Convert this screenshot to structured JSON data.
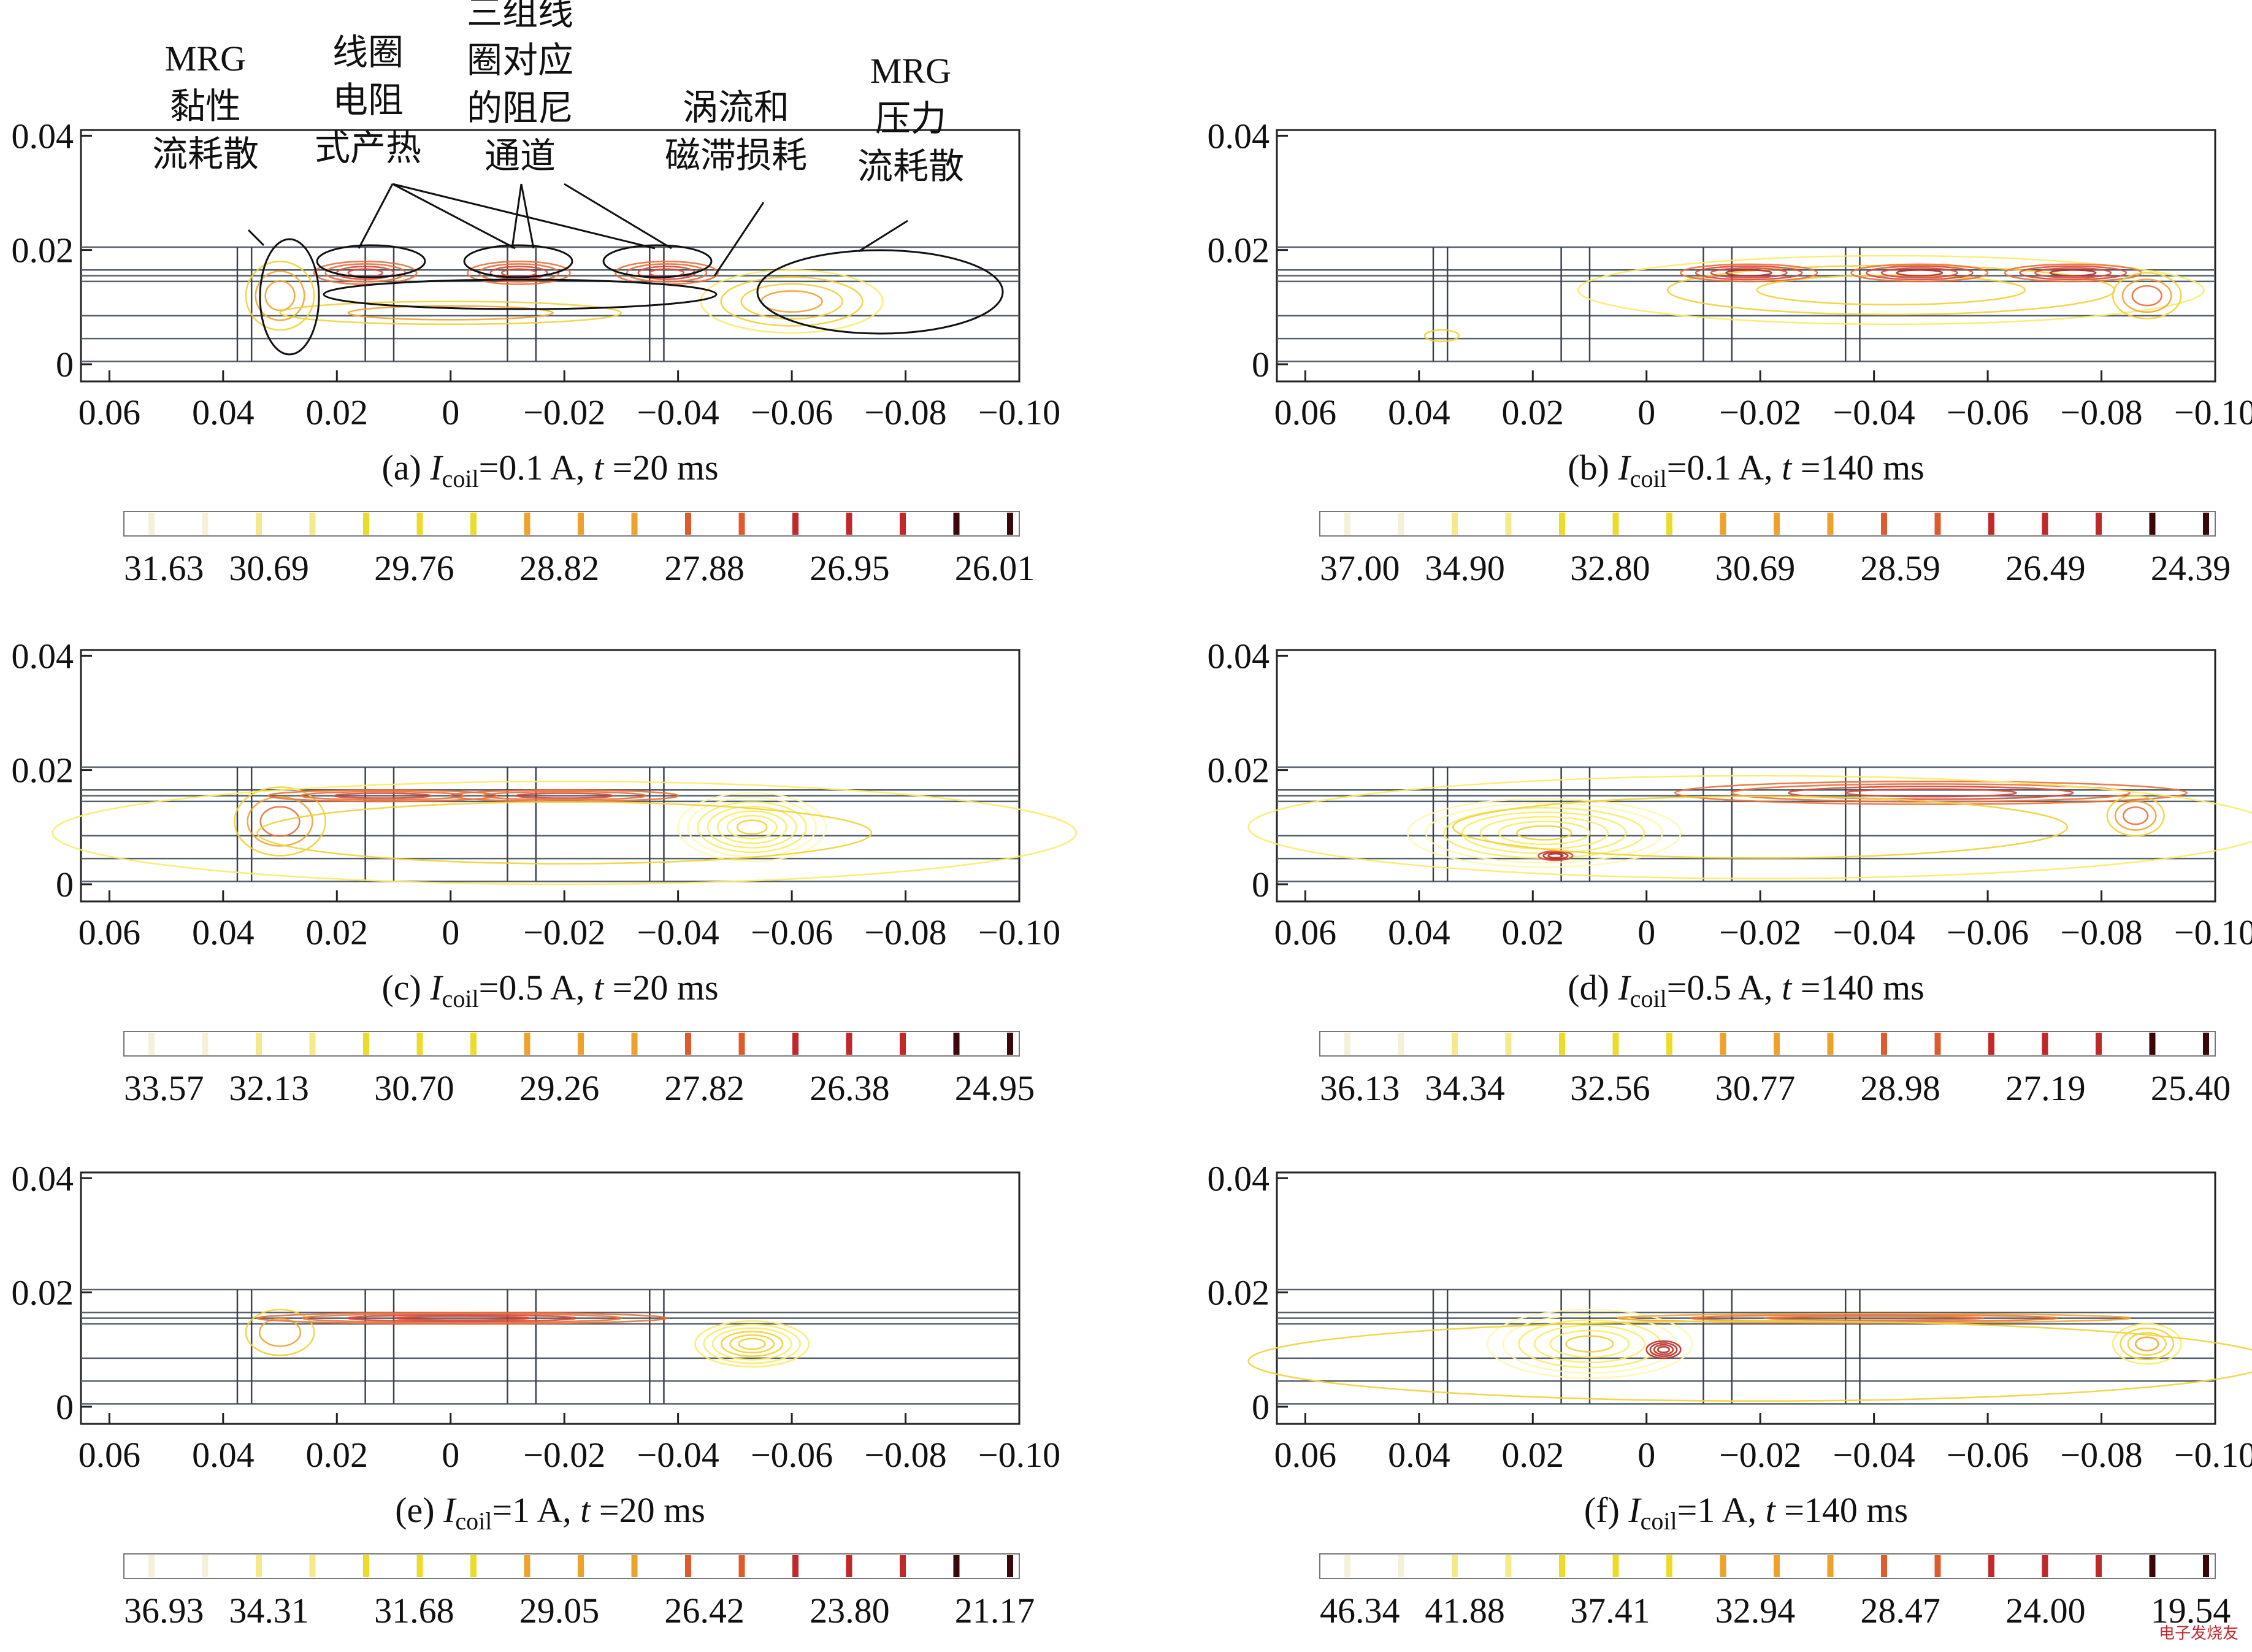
{
  "chart_data": [
    {
      "id": "a",
      "type": "contour",
      "caption": {
        "prefix": "(a)",
        "var": "I",
        "sub": "coil",
        "current": "0.1 A",
        "time": "20 ms"
      },
      "x_ticks": [
        "0.06",
        "0.04",
        "0.02",
        "0",
        "−0.02",
        "−0.04",
        "−0.06",
        "−0.08",
        "−0.10"
      ],
      "x_values": [
        0.06,
        0.04,
        0.02,
        0,
        -0.02,
        -0.04,
        -0.06,
        -0.08,
        -0.1
      ],
      "y_ticks": [
        "0",
        "0.02",
        "0.04"
      ],
      "y_values": [
        0,
        0.02,
        0.04
      ],
      "colorbar": [
        "31.63",
        "30.69",
        "29.76",
        "28.82",
        "27.88",
        "26.95",
        "26.01"
      ],
      "channel_lines": [
        0.0005,
        0.0045,
        0.0085,
        0.0145,
        0.0155,
        0.0165,
        0.0205
      ],
      "pole_pairs": [
        [
          0.0375,
          0.035
        ],
        [
          0.015,
          0.01
        ],
        [
          -0.01,
          -0.015
        ],
        [
          -0.035,
          -0.0375
        ]
      ],
      "contours": [
        {
          "cx": 0.03,
          "cy": 0.012,
          "rx": 0.006,
          "ry": 0.006,
          "n": 3,
          "warm": 0.35
        },
        {
          "cx": 0.015,
          "cy": 0.016,
          "rx": 0.009,
          "ry": 0.002,
          "n": 4,
          "warm": 0.6
        },
        {
          "cx": -0.012,
          "cy": 0.016,
          "rx": 0.009,
          "ry": 0.002,
          "n": 4,
          "warm": 0.6
        },
        {
          "cx": -0.038,
          "cy": 0.016,
          "rx": 0.009,
          "ry": 0.002,
          "n": 4,
          "warm": 0.6
        },
        {
          "cx": -0.06,
          "cy": 0.011,
          "rx": 0.016,
          "ry": 0.0055,
          "n": 4,
          "warm": 0.2
        },
        {
          "cx": 0.0,
          "cy": 0.009,
          "rx": 0.03,
          "ry": 0.002,
          "n": 2,
          "warm": 0.3
        }
      ],
      "annotations": [
        {
          "lines": [
            "MRG",
            "黏性",
            "流耗散"
          ]
        },
        {
          "lines": [
            "线圈",
            "电阻",
            "式产热"
          ]
        },
        {
          "lines": [
            "三组线",
            "圈对应",
            "的阻尼",
            "通道"
          ]
        },
        {
          "lines": [
            "涡流和",
            "磁滞损耗"
          ]
        },
        {
          "lines": [
            "MRG",
            "压力",
            "流耗散"
          ]
        }
      ]
    },
    {
      "id": "b",
      "type": "contour",
      "caption": {
        "prefix": "(b)",
        "var": "I",
        "sub": "coil",
        "current": "0.1 A",
        "time": "140 ms"
      },
      "x_ticks": [
        "0.06",
        "0.04",
        "0.02",
        "0",
        "−0.02",
        "−0.04",
        "−0.06",
        "−0.08",
        "−0.10"
      ],
      "x_values": [
        0.06,
        0.04,
        0.02,
        0,
        -0.02,
        -0.04,
        -0.06,
        -0.08,
        -0.1
      ],
      "y_ticks": [
        "0",
        "0.02",
        "0.04"
      ],
      "y_values": [
        0,
        0.02,
        0.04
      ],
      "colorbar": [
        "37.00",
        "34.90",
        "32.80",
        "30.69",
        "28.59",
        "26.49",
        "24.39"
      ],
      "channel_lines": [
        0.0005,
        0.0045,
        0.0085,
        0.0145,
        0.0155,
        0.0165,
        0.0205
      ],
      "pole_pairs": [
        [
          0.0375,
          0.035
        ],
        [
          0.015,
          0.01
        ],
        [
          -0.01,
          -0.015
        ],
        [
          -0.035,
          -0.0375
        ]
      ],
      "contours": [
        {
          "cx": 0.036,
          "cy": 0.005,
          "rx": 0.003,
          "ry": 0.001,
          "n": 1,
          "warm": 0.4
        },
        {
          "cx": -0.043,
          "cy": 0.013,
          "rx": 0.055,
          "ry": 0.006,
          "n": 3,
          "warm": 0.2
        },
        {
          "cx": -0.018,
          "cy": 0.016,
          "rx": 0.012,
          "ry": 0.0015,
          "n": 4,
          "warm": 0.7
        },
        {
          "cx": -0.048,
          "cy": 0.016,
          "rx": 0.012,
          "ry": 0.0015,
          "n": 4,
          "warm": 0.7
        },
        {
          "cx": -0.075,
          "cy": 0.016,
          "rx": 0.012,
          "ry": 0.0015,
          "n": 4,
          "warm": 0.7
        },
        {
          "cx": -0.088,
          "cy": 0.012,
          "rx": 0.006,
          "ry": 0.004,
          "n": 3,
          "warm": 0.4
        }
      ]
    },
    {
      "id": "c",
      "type": "contour",
      "caption": {
        "prefix": "(c)",
        "var": "I",
        "sub": "coil",
        "current": "0.5 A",
        "time": "20 ms"
      },
      "x_ticks": [
        "0.06",
        "0.04",
        "0.02",
        "0",
        "−0.02",
        "−0.04",
        "−0.06",
        "−0.08",
        "−0.10"
      ],
      "x_values": [
        0.06,
        0.04,
        0.02,
        0,
        -0.02,
        -0.04,
        -0.06,
        -0.08,
        -0.1
      ],
      "y_ticks": [
        "0",
        "0.02",
        "0.04"
      ],
      "y_values": [
        0,
        0.02,
        0.04
      ],
      "colorbar": [
        "33.57",
        "32.13",
        "30.70",
        "29.26",
        "27.82",
        "26.38",
        "24.95"
      ],
      "channel_lines": [
        0.0005,
        0.0045,
        0.0085,
        0.0145,
        0.0155,
        0.0165,
        0.0205
      ],
      "pole_pairs": [
        [
          0.0375,
          0.035
        ],
        [
          0.015,
          0.01
        ],
        [
          -0.01,
          -0.015
        ],
        [
          -0.035,
          -0.0375
        ]
      ],
      "contours": [
        {
          "cx": 0.03,
          "cy": 0.011,
          "rx": 0.008,
          "ry": 0.006,
          "n": 3,
          "warm": 0.4
        },
        {
          "cx": 0.012,
          "cy": 0.0155,
          "rx": 0.02,
          "ry": 0.001,
          "n": 3,
          "warm": 0.6
        },
        {
          "cx": -0.02,
          "cy": 0.0155,
          "rx": 0.02,
          "ry": 0.001,
          "n": 3,
          "warm": 0.6
        },
        {
          "cx": -0.053,
          "cy": 0.01,
          "rx": 0.013,
          "ry": 0.006,
          "n": 7,
          "warm": 0.0
        },
        {
          "cx": -0.02,
          "cy": 0.009,
          "rx": 0.09,
          "ry": 0.009,
          "n": 2,
          "warm": 0.2
        }
      ]
    },
    {
      "id": "d",
      "type": "contour",
      "caption": {
        "prefix": "(d)",
        "var": "I",
        "sub": "coil",
        "current": "0.5 A",
        "time": "140 ms"
      },
      "x_ticks": [
        "0.06",
        "0.04",
        "0.02",
        "0",
        "−0.02",
        "−0.04",
        "−0.06",
        "−0.08",
        "−0.10"
      ],
      "x_values": [
        0.06,
        0.04,
        0.02,
        0,
        -0.02,
        -0.04,
        -0.06,
        -0.08,
        -0.1
      ],
      "y_ticks": [
        "0",
        "0.02",
        "0.04"
      ],
      "y_values": [
        0,
        0.02,
        0.04
      ],
      "colorbar": [
        "36.13",
        "34.34",
        "32.56",
        "30.77",
        "28.98",
        "27.19",
        "25.40"
      ],
      "channel_lines": [
        0.0005,
        0.0045,
        0.0085,
        0.0145,
        0.0155,
        0.0165,
        0.0205
      ],
      "pole_pairs": [
        [
          0.0375,
          0.035
        ],
        [
          0.015,
          0.01
        ],
        [
          -0.01,
          -0.015
        ],
        [
          -0.035,
          -0.0375
        ]
      ],
      "contours": [
        {
          "cx": 0.018,
          "cy": 0.009,
          "rx": 0.024,
          "ry": 0.006,
          "n": 7,
          "warm": 0.0
        },
        {
          "cx": 0.016,
          "cy": 0.005,
          "rx": 0.003,
          "ry": 0.0008,
          "n": 3,
          "warm": 0.9
        },
        {
          "cx": -0.05,
          "cy": 0.016,
          "rx": 0.045,
          "ry": 0.002,
          "n": 4,
          "warm": 0.6
        },
        {
          "cx": -0.086,
          "cy": 0.012,
          "rx": 0.005,
          "ry": 0.0035,
          "n": 3,
          "warm": 0.4
        },
        {
          "cx": -0.02,
          "cy": 0.01,
          "rx": 0.09,
          "ry": 0.009,
          "n": 2,
          "warm": 0.2
        }
      ]
    },
    {
      "id": "e",
      "type": "contour",
      "caption": {
        "prefix": "(e)",
        "var": "I",
        "sub": "coil",
        "current": "1 A",
        "time": "20 ms"
      },
      "x_ticks": [
        "0.06",
        "0.04",
        "0.02",
        "0",
        "−0.02",
        "−0.04",
        "−0.06",
        "−0.08",
        "−0.10"
      ],
      "x_values": [
        0.06,
        0.04,
        0.02,
        0,
        -0.02,
        -0.04,
        -0.06,
        -0.08,
        -0.1
      ],
      "y_ticks": [
        "0",
        "0.02",
        "0.04"
      ],
      "y_values": [
        0,
        0.02,
        0.04
      ],
      "colorbar": [
        "36.93",
        "34.31",
        "31.68",
        "29.05",
        "26.42",
        "23.80",
        "21.17"
      ],
      "channel_lines": [
        0.0005,
        0.0045,
        0.0085,
        0.0145,
        0.0155,
        0.0165,
        0.0205
      ],
      "pole_pairs": [
        [
          0.0375,
          0.035
        ],
        [
          0.015,
          0.01
        ],
        [
          -0.01,
          -0.015
        ],
        [
          -0.035,
          -0.0375
        ]
      ],
      "contours": [
        {
          "cx": 0.03,
          "cy": 0.013,
          "rx": 0.006,
          "ry": 0.004,
          "n": 2,
          "warm": 0.4
        },
        {
          "cx": -0.002,
          "cy": 0.0155,
          "rx": 0.036,
          "ry": 0.001,
          "n": 4,
          "warm": 0.6
        },
        {
          "cx": -0.053,
          "cy": 0.011,
          "rx": 0.01,
          "ry": 0.004,
          "n": 6,
          "warm": 0.1
        }
      ]
    },
    {
      "id": "f",
      "type": "contour",
      "caption": {
        "prefix": "(f)",
        "var": "I",
        "sub": "coil",
        "current": "1 A",
        "time": "140 ms"
      },
      "x_ticks": [
        "0.06",
        "0.04",
        "0.02",
        "0",
        "−0.02",
        "−0.04",
        "−0.06",
        "−0.08",
        "−0.10"
      ],
      "x_values": [
        0.06,
        0.04,
        0.02,
        0,
        -0.02,
        -0.04,
        -0.06,
        -0.08,
        -0.1
      ],
      "y_ticks": [
        "0",
        "0.02",
        "0.04"
      ],
      "y_values": [
        0,
        0.02,
        0.04
      ],
      "colorbar": [
        "46.34",
        "41.88",
        "37.41",
        "32.94",
        "28.47",
        "24.00",
        "19.54"
      ],
      "channel_lines": [
        0.0005,
        0.0045,
        0.0085,
        0.0145,
        0.0155,
        0.0165,
        0.0205
      ],
      "pole_pairs": [
        [
          0.0375,
          0.035
        ],
        [
          0.015,
          0.01
        ],
        [
          -0.01,
          -0.015
        ],
        [
          -0.035,
          -0.0375
        ]
      ],
      "contours": [
        {
          "cx": 0.01,
          "cy": 0.011,
          "rx": 0.018,
          "ry": 0.006,
          "n": 6,
          "warm": 0.0
        },
        {
          "cx": -0.003,
          "cy": 0.01,
          "rx": 0.003,
          "ry": 0.0015,
          "n": 4,
          "warm": 1.0
        },
        {
          "cx": -0.04,
          "cy": 0.0155,
          "rx": 0.045,
          "ry": 0.0008,
          "n": 3,
          "warm": 0.5
        },
        {
          "cx": -0.088,
          "cy": 0.011,
          "rx": 0.006,
          "ry": 0.0035,
          "n": 4,
          "warm": 0.2
        },
        {
          "cx": -0.02,
          "cy": 0.008,
          "rx": 0.09,
          "ry": 0.007,
          "n": 1,
          "warm": 0.3
        }
      ]
    }
  ],
  "watermark": "电子发烧友"
}
